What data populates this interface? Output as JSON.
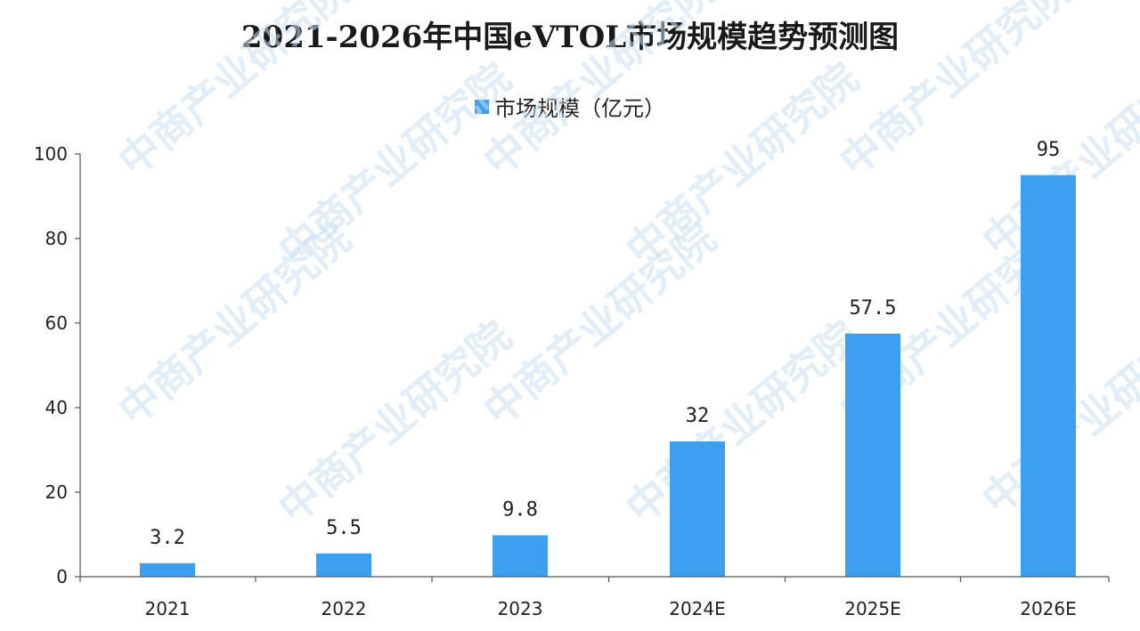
{
  "title": "2021-2026年中国eVTOL市场规模趋势预测图",
  "watermark": {
    "text": "中商产业研究院"
  },
  "colors": {
    "bar": "#3d9ff0",
    "axis": "#555555",
    "watermark": "#c9dff2"
  },
  "chart_data": {
    "type": "bar",
    "title": "2021-2026年中国eVTOL市场规模趋势预测图",
    "categories": [
      "2021",
      "2022",
      "2023",
      "2024E",
      "2025E",
      "2026E"
    ],
    "series": [
      {
        "name": "市场规模（亿元）",
        "values": [
          3.2,
          5.5,
          9.8,
          32,
          57.5,
          95
        ],
        "labels": [
          "3.2",
          "5.5",
          "9.8",
          "32",
          "57.5",
          "95"
        ]
      }
    ],
    "ylim": [
      0,
      100
    ],
    "yticks": [
      0,
      20,
      40,
      60,
      80,
      100
    ],
    "xlabel": "",
    "ylabel": "",
    "grid": false,
    "legend": "top-center"
  }
}
